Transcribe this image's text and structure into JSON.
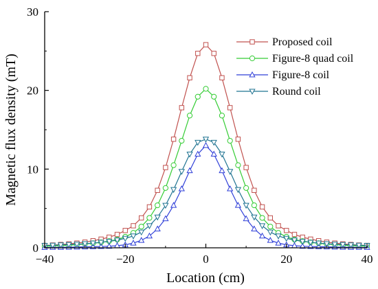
{
  "chart_data": {
    "type": "line",
    "xlabel": "Location (cm)",
    "ylabel": "Magnetic flux density (mT)",
    "xlim": [
      -40,
      40
    ],
    "ylim": [
      0,
      30
    ],
    "x_ticks": [
      -40,
      -20,
      0,
      20,
      40
    ],
    "y_ticks": [
      0,
      10,
      20,
      30
    ],
    "x_tick_labels": [
      "−40",
      "−20",
      "0",
      "20",
      "40"
    ],
    "y_tick_labels": [
      "0",
      "10",
      "20",
      "30"
    ],
    "grid": false,
    "legend_position": "top-right",
    "x": [
      -40,
      -38,
      -36,
      -34,
      -32,
      -30,
      -28,
      -26,
      -24,
      -22,
      -20,
      -18,
      -16,
      -14,
      -12,
      -10,
      -8,
      -6,
      -4,
      -2,
      0,
      2,
      4,
      6,
      8,
      10,
      12,
      14,
      16,
      18,
      20,
      22,
      24,
      26,
      28,
      30,
      32,
      34,
      36,
      38,
      40
    ],
    "series": [
      {
        "name": "Proposed coil",
        "color": "#c0504d",
        "marker": "square",
        "values": [
          0.3,
          0.35,
          0.42,
          0.5,
          0.6,
          0.72,
          0.9,
          1.1,
          1.35,
          1.7,
          2.2,
          2.8,
          3.8,
          5.2,
          7.3,
          10.2,
          13.8,
          17.8,
          21.6,
          24.7,
          25.8,
          24.7,
          21.6,
          17.8,
          13.8,
          10.2,
          7.3,
          5.2,
          3.8,
          2.8,
          2.2,
          1.7,
          1.35,
          1.1,
          0.9,
          0.72,
          0.6,
          0.5,
          0.42,
          0.35,
          0.3
        ]
      },
      {
        "name": "Figure-8 quad coil",
        "color": "#33cc33",
        "marker": "circle",
        "values": [
          0.2,
          0.24,
          0.28,
          0.33,
          0.4,
          0.48,
          0.58,
          0.7,
          0.85,
          1.05,
          1.4,
          1.9,
          2.7,
          3.8,
          5.4,
          7.6,
          10.5,
          13.6,
          16.8,
          19.2,
          20.2,
          19.2,
          16.8,
          13.6,
          10.5,
          7.6,
          5.4,
          3.8,
          2.7,
          1.9,
          1.4,
          1.05,
          0.85,
          0.7,
          0.58,
          0.48,
          0.4,
          0.33,
          0.28,
          0.24,
          0.2
        ]
      },
      {
        "name": "Figure-8 coil",
        "color": "#2f3fd8",
        "marker": "triangle-up",
        "values": [
          0.05,
          0.06,
          0.07,
          0.08,
          0.1,
          0.12,
          0.14,
          0.17,
          0.2,
          0.27,
          0.38,
          0.6,
          0.95,
          1.5,
          2.4,
          3.7,
          5.4,
          7.5,
          9.8,
          11.9,
          13.0,
          11.9,
          9.8,
          7.5,
          5.4,
          3.7,
          2.4,
          1.5,
          0.95,
          0.6,
          0.38,
          0.27,
          0.2,
          0.17,
          0.14,
          0.12,
          0.1,
          0.08,
          0.07,
          0.06,
          0.05
        ]
      },
      {
        "name": "Round coil",
        "color": "#1f7391",
        "marker": "triangle-down",
        "values": [
          0.3,
          0.33,
          0.37,
          0.41,
          0.46,
          0.52,
          0.6,
          0.7,
          0.82,
          0.98,
          1.2,
          1.5,
          2.0,
          2.8,
          3.9,
          5.4,
          7.4,
          9.7,
          11.9,
          13.4,
          13.8,
          13.4,
          11.9,
          9.7,
          7.4,
          5.4,
          3.9,
          2.8,
          2.0,
          1.5,
          1.2,
          0.98,
          0.82,
          0.7,
          0.6,
          0.52,
          0.46,
          0.41,
          0.37,
          0.33,
          0.3
        ]
      }
    ]
  }
}
